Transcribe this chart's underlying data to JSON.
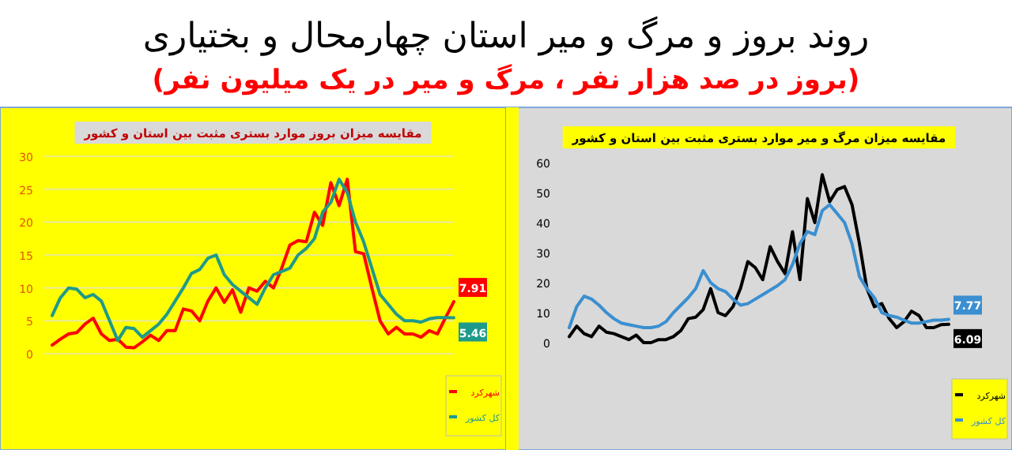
{
  "chart_data": [
    {
      "type": "line",
      "title": "مقایسه میزان بروز موارد بستری مثبت بین استان و کشور",
      "annotations": [
        "روند بروز و مرگ و میر استان چهارمحال و بختیاری",
        "(بروز در صد هزار نفر ، مرگ و میر در یک میلیون نفر)"
      ],
      "categories": [
        null,
        null,
        null,
        null,
        null,
        null,
        null,
        null,
        null,
        null,
        null,
        null,
        null,
        null,
        null,
        null,
        null,
        null,
        null,
        null,
        null,
        null,
        null,
        null,
        null,
        null,
        null,
        null,
        null,
        null,
        null,
        null,
        null,
        null,
        null,
        null,
        null,
        null,
        null,
        null,
        null,
        null,
        null,
        null,
        null,
        null,
        null,
        null,
        null,
        null
      ],
      "ylim": [
        0,
        30
      ],
      "yticks": [
        0,
        5,
        10,
        15,
        20,
        25,
        30
      ],
      "grid": "y",
      "legend": "bottom right",
      "series": [
        {
          "name": "شهرکرد",
          "color": "#ff0000",
          "values": [
            1.3,
            2.2,
            3,
            3.2,
            4.5,
            5.4,
            3,
            2,
            2.2,
            1,
            0.9,
            1.8,
            2.8,
            2,
            3.5,
            3.5,
            6.8,
            6.5,
            5,
            8,
            10,
            7.8,
            9.7,
            6.3,
            10,
            9.5,
            11,
            10,
            13,
            16.5,
            17.2,
            17,
            21.5,
            19.5,
            26,
            22.5,
            26.5,
            15.5,
            15.2,
            10,
            5,
            3,
            4,
            3,
            3,
            2.5,
            3.5,
            3,
            5.5,
            7.91
          ],
          "value_labels": [
            null,
            null,
            null,
            null,
            null,
            null,
            null,
            null,
            null,
            null,
            null,
            null,
            null,
            null,
            null,
            null,
            null,
            null,
            null,
            null,
            null,
            null,
            null,
            null,
            null,
            null,
            null,
            null,
            null,
            null,
            null,
            null,
            null,
            null,
            null,
            null,
            null,
            null,
            null,
            null,
            null,
            null,
            null,
            null,
            null,
            null,
            null,
            null,
            null,
            "7.91"
          ]
        },
        {
          "name": "کل کشور",
          "color": "#1f9a8a",
          "values": [
            5.8,
            8.5,
            10,
            9.8,
            8.5,
            9,
            8,
            5,
            2,
            4,
            3.8,
            2.5,
            3.5,
            4.5,
            6,
            8,
            10,
            12.2,
            12.8,
            14.5,
            15,
            12,
            10.5,
            9.5,
            8.5,
            7.5,
            10,
            12,
            12.5,
            13,
            15,
            16,
            17.5,
            21.5,
            23,
            26.5,
            24.5,
            20,
            17,
            13,
            9,
            7.5,
            6,
            5,
            5,
            4.8,
            5.3,
            5.5,
            5.5,
            5.46
          ],
          "value_labels": [
            null,
            null,
            null,
            null,
            null,
            null,
            null,
            null,
            null,
            null,
            null,
            null,
            null,
            null,
            null,
            null,
            null,
            null,
            null,
            null,
            null,
            null,
            null,
            null,
            null,
            null,
            null,
            null,
            null,
            null,
            null,
            null,
            null,
            null,
            null,
            null,
            null,
            null,
            null,
            null,
            null,
            null,
            null,
            null,
            null,
            null,
            null,
            null,
            null,
            "5.46"
          ]
        }
      ]
    },
    {
      "type": "line",
      "title": "مقایسه میزان مرگ و میر موارد بستری مثبت بین استان و کشور",
      "categories": [
        null,
        null,
        null,
        null,
        null,
        null,
        null,
        null,
        null,
        null,
        null,
        null,
        null,
        null,
        null,
        null,
        null,
        null,
        null,
        null,
        null,
        null,
        null,
        null,
        null,
        null,
        null,
        null,
        null,
        null,
        null,
        null,
        null,
        null,
        null,
        null,
        null,
        null,
        null,
        null,
        null,
        null,
        null,
        null,
        null,
        null,
        null,
        null,
        null,
        null,
        null,
        null
      ],
      "ylim": [
        0,
        60
      ],
      "yticks": [
        0,
        10,
        20,
        30,
        40,
        50,
        60
      ],
      "legend": "bottom right",
      "series": [
        {
          "name": "شهرکرد",
          "color": "#000000",
          "values": [
            2,
            5.5,
            3,
            2,
            5.5,
            3.5,
            3,
            2,
            1,
            2.5,
            0,
            0,
            1,
            1,
            2,
            4,
            8,
            8.5,
            11,
            18,
            10,
            9,
            12,
            18,
            27,
            25,
            21,
            32,
            27,
            23,
            37,
            21,
            48,
            40,
            56,
            47,
            51,
            52,
            46,
            33,
            18,
            12,
            13,
            8,
            5,
            7,
            10.5,
            9,
            5,
            5,
            6,
            6.09
          ],
          "value_labels": [
            null,
            null,
            null,
            null,
            null,
            null,
            null,
            null,
            null,
            null,
            null,
            null,
            null,
            null,
            null,
            null,
            null,
            null,
            null,
            null,
            null,
            null,
            null,
            null,
            null,
            null,
            null,
            null,
            null,
            null,
            null,
            null,
            null,
            null,
            null,
            null,
            null,
            null,
            null,
            null,
            null,
            null,
            null,
            null,
            null,
            null,
            null,
            null,
            null,
            null,
            null,
            "6.09"
          ]
        },
        {
          "name": "کل کشور",
          "color": "#3a8fd0",
          "values": [
            5,
            12,
            15.5,
            14.5,
            12.5,
            10,
            8,
            6.5,
            6,
            5.5,
            5,
            5,
            5.5,
            7,
            10,
            12.5,
            15,
            18,
            24,
            20,
            18,
            17,
            14.5,
            12.5,
            13,
            14.5,
            16,
            17.5,
            19,
            21,
            26,
            33,
            37,
            36,
            44,
            46,
            43,
            40,
            33,
            22,
            18,
            15,
            10,
            9,
            8.5,
            7.5,
            6.5,
            6.5,
            7,
            7.5,
            7.5,
            7.77
          ],
          "value_labels": [
            null,
            null,
            null,
            null,
            null,
            null,
            null,
            null,
            null,
            null,
            null,
            null,
            null,
            null,
            null,
            null,
            null,
            null,
            null,
            null,
            null,
            null,
            null,
            null,
            null,
            null,
            null,
            null,
            null,
            null,
            null,
            null,
            null,
            null,
            null,
            null,
            null,
            null,
            null,
            null,
            null,
            null,
            null,
            null,
            null,
            null,
            null,
            null,
            null,
            null,
            null,
            "7.77"
          ]
        }
      ]
    }
  ]
}
